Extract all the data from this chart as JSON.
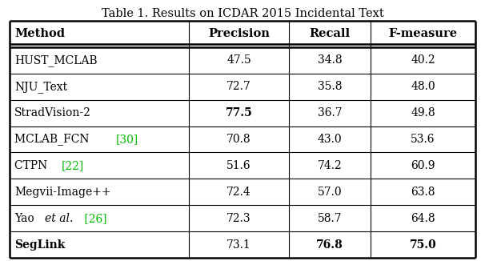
{
  "title": "Table 1. Results on ICDAR 2015 Incidental Text",
  "headers": [
    "Method",
    "Precision",
    "Recall",
    "F-measure"
  ],
  "rows": [
    {
      "method": "HUST_MCLAB",
      "prec": "47.5",
      "rec": "34.8",
      "fm": "40.2",
      "method_bold": false,
      "prec_bold": false,
      "rec_bold": false,
      "fm_bold": false
    },
    {
      "method": "NJU_Text",
      "prec": "72.7",
      "rec": "35.8",
      "fm": "48.0",
      "method_bold": false,
      "prec_bold": false,
      "rec_bold": false,
      "fm_bold": false
    },
    {
      "method": "StradVision-2",
      "prec": "77.5",
      "rec": "36.7",
      "fm": "49.8",
      "method_bold": false,
      "prec_bold": true,
      "rec_bold": false,
      "fm_bold": false
    },
    {
      "method": "MCLAB_FCN [30]",
      "prec": "70.8",
      "rec": "43.0",
      "fm": "53.6",
      "method_bold": false,
      "prec_bold": false,
      "rec_bold": false,
      "fm_bold": false
    },
    {
      "method": "CTPN [22]",
      "prec": "51.6",
      "rec": "74.2",
      "fm": "60.9",
      "method_bold": false,
      "prec_bold": false,
      "rec_bold": false,
      "fm_bold": false
    },
    {
      "method": "Megvii-Image++",
      "prec": "72.4",
      "rec": "57.0",
      "fm": "63.8",
      "method_bold": false,
      "prec_bold": false,
      "rec_bold": false,
      "fm_bold": false
    },
    {
      "method": "Yao et al. [26]",
      "prec": "72.3",
      "rec": "58.7",
      "fm": "64.8",
      "method_bold": false,
      "prec_bold": false,
      "rec_bold": false,
      "fm_bold": false
    },
    {
      "method": "SegLink",
      "prec": "73.1",
      "rec": "76.8",
      "fm": "75.0",
      "method_bold": true,
      "prec_bold": false,
      "rec_bold": true,
      "fm_bold": true
    }
  ],
  "background_color": "#ffffff",
  "line_color": "#000000",
  "text_color": "#000000",
  "green_color": "#00bb00",
  "title_fontsize": 10.5,
  "cell_fontsize": 10,
  "header_fontsize": 10.5,
  "fig_width": 6.06,
  "fig_height": 3.26,
  "dpi": 100
}
